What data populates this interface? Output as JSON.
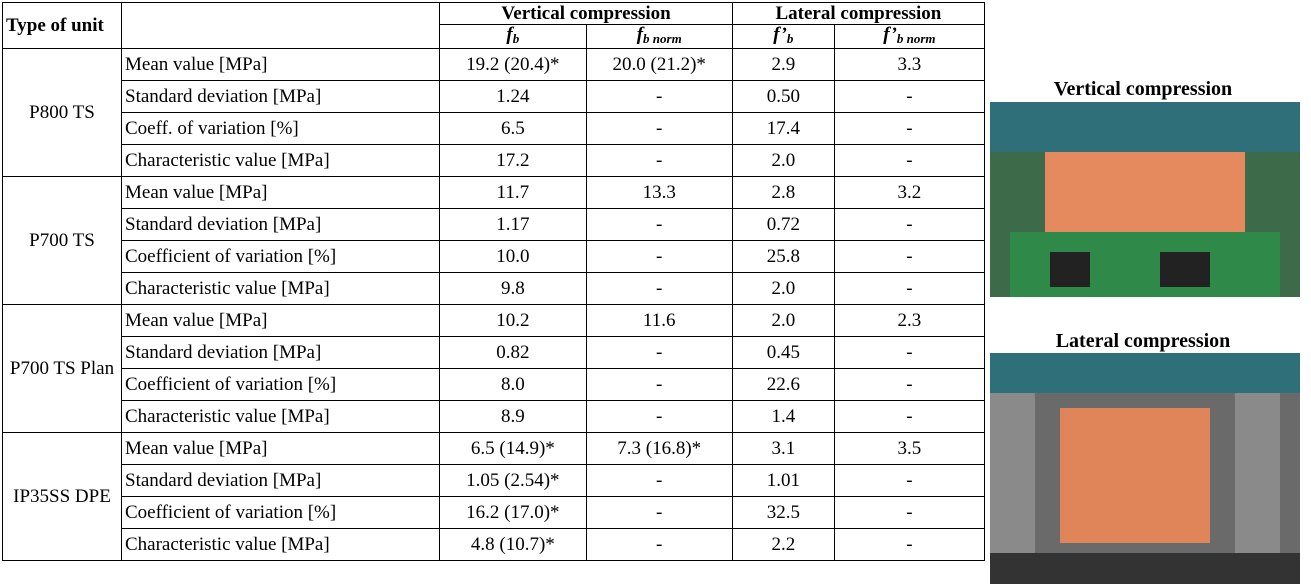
{
  "table": {
    "header": {
      "type": "Type of unit",
      "vertical": "Vertical compression",
      "lateral": "Lateral compression",
      "columns": [
        {
          "main": "f",
          "sub": "b"
        },
        {
          "main": "f",
          "sub": "b norm"
        },
        {
          "main": "f’",
          "sub": "b"
        },
        {
          "main": "f’",
          "sub": "b norm"
        }
      ]
    },
    "groups": [
      {
        "name": "P800 TS",
        "rows": [
          [
            "Mean value [MPa]",
            "19.2 (20.4)*",
            "20.0 (21.2)*",
            "2.9",
            "3.3"
          ],
          [
            "Standard deviation [MPa]",
            "1.24",
            "-",
            "0.50",
            "-"
          ],
          [
            "Coeff. of variation [%]",
            "6.5",
            "-",
            "17.4",
            "-"
          ],
          [
            "Characteristic value [MPa]",
            "17.2",
            "-",
            "2.0",
            "-"
          ]
        ]
      },
      {
        "name": "P700 TS",
        "rows": [
          [
            "Mean value [MPa]",
            "11.7",
            "13.3",
            "2.8",
            "3.2"
          ],
          [
            "Standard deviation [MPa]",
            "1.17",
            "-",
            "0.72",
            "-"
          ],
          [
            "Coefficient of variation [%]",
            "10.0",
            "-",
            "25.8",
            "-"
          ],
          [
            "Characteristic value [MPa]",
            "9.8",
            "-",
            "2.0",
            "-"
          ]
        ]
      },
      {
        "name": "P700 TS Plan",
        "rows": [
          [
            "Mean value [MPa]",
            "10.2",
            "11.6",
            "2.0",
            "2.3"
          ],
          [
            "Standard deviation [MPa]",
            "0.82",
            "-",
            "0.45",
            "-"
          ],
          [
            "Coefficient of variation [%]",
            "8.0",
            "-",
            "22.6",
            "-"
          ],
          [
            "Characteristic value [MPa]",
            "8.9",
            "-",
            "1.4",
            "-"
          ]
        ]
      },
      {
        "name": "IP35SS DPE",
        "rows": [
          [
            "Mean value [MPa]",
            "6.5 (14.9)*",
            "7.3  (16.8)*",
            "3.1",
            "3.5"
          ],
          [
            "Standard deviation [MPa]",
            "1.05 (2.54)*",
            "-",
            "1.01",
            "-"
          ],
          [
            "Coefficient of variation [%]",
            "16.2 (17.0)*",
            "-",
            "32.5",
            "-"
          ],
          [
            "Characteristic value [MPa]",
            "4.8 (10.7)*",
            "-",
            "2.2",
            "-"
          ]
        ]
      }
    ]
  },
  "photos": [
    {
      "caption": "Vertical compression"
    },
    {
      "caption": "Lateral compression"
    }
  ]
}
